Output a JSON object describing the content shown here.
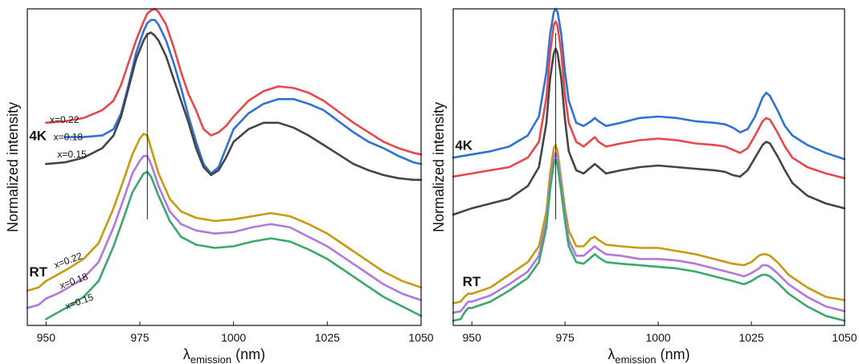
{
  "colors": {
    "red": "#e8474b",
    "blue": "#2f72d6",
    "gray": "#454545",
    "gold": "#c79a12",
    "purple": "#b278dc",
    "green": "#3aa96b"
  },
  "chart_data": [
    {
      "type": "line",
      "title": "",
      "xlabel": "λ",
      "xlabel_sub": "emission",
      "xlabel_unit": " (nm)",
      "ylabel": "Normalized intensity",
      "xlim": [
        945,
        1050
      ],
      "ylim": [
        0,
        1
      ],
      "yticks_shown": false,
      "x_ticks": [
        950,
        975,
        1000,
        1025,
        1050
      ],
      "x_tick_labels": [
        "950",
        "975",
        "1000",
        "1025",
        "1050"
      ],
      "vline_x": 977,
      "group_labels": [
        {
          "text": "4K",
          "x": 945.5,
          "y": 0.585
        },
        {
          "text": "RT",
          "x": 945.5,
          "y": 0.155
        }
      ],
      "annotations": [
        {
          "text": "x=0.22",
          "x": 951,
          "y": 0.64
        },
        {
          "text": "x=0.18",
          "x": 952,
          "y": 0.585
        },
        {
          "text": "x=0.15",
          "x": 953,
          "y": 0.53
        },
        {
          "text": "x=0.22",
          "x": 952.5,
          "y": 0.18,
          "rotate": -20
        },
        {
          "text": "x=0.18",
          "x": 954,
          "y": 0.115,
          "rotate": -20
        },
        {
          "text": "x=0.15",
          "x": 955.5,
          "y": 0.05,
          "rotate": -20
        }
      ],
      "series": [
        {
          "color_key": "red",
          "x": [
            950,
            955,
            960,
            965,
            968,
            970,
            972,
            974,
            976,
            977,
            978,
            979,
            980,
            982,
            984,
            986,
            988,
            990,
            992,
            994,
            996,
            998,
            1000,
            1004,
            1008,
            1012,
            1016,
            1020,
            1024,
            1028,
            1032,
            1036,
            1040,
            1044,
            1048,
            1050
          ],
          "y": [
            0.64,
            0.645,
            0.655,
            0.68,
            0.71,
            0.76,
            0.83,
            0.9,
            0.96,
            0.985,
            0.995,
            1.0,
            0.99,
            0.95,
            0.88,
            0.8,
            0.73,
            0.68,
            0.62,
            0.6,
            0.61,
            0.63,
            0.66,
            0.71,
            0.74,
            0.755,
            0.75,
            0.735,
            0.71,
            0.675,
            0.64,
            0.61,
            0.58,
            0.56,
            0.545,
            0.54
          ]
        },
        {
          "color_key": "blue",
          "x": [
            955,
            960,
            965,
            968,
            970,
            972,
            974,
            976,
            977,
            978,
            979,
            980,
            982,
            984,
            986,
            988,
            990,
            992,
            994,
            996,
            998,
            1000,
            1004,
            1008,
            1012,
            1016,
            1020,
            1024,
            1028,
            1032,
            1036,
            1040,
            1044,
            1048,
            1050
          ],
          "y": [
            0.595,
            0.595,
            0.6,
            0.62,
            0.67,
            0.76,
            0.86,
            0.93,
            0.955,
            0.965,
            0.965,
            0.95,
            0.9,
            0.83,
            0.75,
            0.66,
            0.58,
            0.51,
            0.48,
            0.5,
            0.56,
            0.62,
            0.67,
            0.7,
            0.715,
            0.715,
            0.7,
            0.68,
            0.645,
            0.61,
            0.58,
            0.56,
            0.535,
            0.515,
            0.51
          ]
        },
        {
          "color_key": "gray",
          "x": [
            950,
            955,
            960,
            965,
            968,
            970,
            972,
            974,
            976,
            977,
            978,
            979,
            980,
            982,
            984,
            986,
            988,
            990,
            992,
            994,
            996,
            998,
            1000,
            1004,
            1008,
            1012,
            1016,
            1020,
            1024,
            1028,
            1032,
            1036,
            1040,
            1044,
            1048,
            1050
          ],
          "y": [
            0.51,
            0.515,
            0.53,
            0.56,
            0.6,
            0.66,
            0.75,
            0.84,
            0.9,
            0.92,
            0.925,
            0.915,
            0.9,
            0.85,
            0.78,
            0.71,
            0.64,
            0.56,
            0.5,
            0.475,
            0.49,
            0.53,
            0.58,
            0.62,
            0.64,
            0.64,
            0.625,
            0.6,
            0.57,
            0.54,
            0.51,
            0.49,
            0.475,
            0.465,
            0.46,
            0.46
          ]
        },
        {
          "color_key": "gold",
          "x": [
            945,
            948,
            950,
            953,
            956,
            960,
            964,
            968,
            971,
            973,
            975,
            976,
            977,
            978,
            980,
            983,
            986,
            990,
            995,
            1000,
            1005,
            1010,
            1015,
            1020,
            1025,
            1030,
            1035,
            1040,
            1045,
            1050
          ],
          "y": [
            0.11,
            0.12,
            0.14,
            0.16,
            0.18,
            0.21,
            0.26,
            0.37,
            0.47,
            0.54,
            0.59,
            0.605,
            0.6,
            0.56,
            0.48,
            0.4,
            0.36,
            0.34,
            0.33,
            0.335,
            0.345,
            0.355,
            0.345,
            0.32,
            0.29,
            0.25,
            0.21,
            0.17,
            0.14,
            0.12
          ]
        },
        {
          "color_key": "purple",
          "x": [
            945,
            948,
            950,
            953,
            956,
            960,
            964,
            968,
            971,
            973,
            975,
            976,
            977,
            978,
            980,
            983,
            986,
            990,
            995,
            1000,
            1005,
            1010,
            1015,
            1020,
            1025,
            1030,
            1035,
            1040,
            1045,
            1050
          ],
          "y": [
            0.055,
            0.065,
            0.085,
            0.1,
            0.12,
            0.15,
            0.2,
            0.31,
            0.41,
            0.48,
            0.52,
            0.535,
            0.535,
            0.51,
            0.44,
            0.36,
            0.32,
            0.3,
            0.29,
            0.295,
            0.31,
            0.32,
            0.31,
            0.28,
            0.25,
            0.21,
            0.17,
            0.13,
            0.1,
            0.08
          ]
        },
        {
          "color_key": "green",
          "x": [
            950,
            953,
            956,
            960,
            964,
            968,
            971,
            973,
            975,
            976,
            977,
            978,
            980,
            983,
            986,
            990,
            995,
            1000,
            1005,
            1010,
            1015,
            1020,
            1025,
            1030,
            1035,
            1040,
            1045,
            1050
          ],
          "y": [
            0.02,
            0.04,
            0.06,
            0.09,
            0.14,
            0.25,
            0.35,
            0.42,
            0.46,
            0.48,
            0.485,
            0.47,
            0.41,
            0.33,
            0.28,
            0.255,
            0.245,
            0.25,
            0.265,
            0.275,
            0.265,
            0.24,
            0.21,
            0.17,
            0.13,
            0.09,
            0.06,
            0.03
          ]
        }
      ]
    },
    {
      "type": "line",
      "title": "",
      "xlabel": "λ",
      "xlabel_sub": "emission",
      "xlabel_unit": " (nm)",
      "ylabel": "Normalized intensity",
      "xlim": [
        945,
        1050
      ],
      "ylim": [
        0,
        1
      ],
      "yticks_shown": false,
      "x_ticks": [
        950,
        975,
        1000,
        1025,
        1050
      ],
      "x_tick_labels": [
        "950",
        "975",
        "1000",
        "1025",
        "1050"
      ],
      "vline_x": 972.5,
      "group_labels": [
        {
          "text": "4K",
          "x": 945.5,
          "y": 0.555
        },
        {
          "text": "RT",
          "x": 947.5,
          "y": 0.125
        }
      ],
      "annotations": [],
      "series": [
        {
          "color_key": "blue",
          "x": [
            945,
            950,
            955,
            960,
            965,
            968,
            970,
            971,
            972,
            972.5,
            973,
            974,
            975,
            976,
            978,
            980,
            982,
            983,
            984,
            986,
            990,
            995,
            1000,
            1005,
            1010,
            1015,
            1018,
            1020,
            1022,
            1024,
            1026,
            1028,
            1029,
            1030,
            1032,
            1034,
            1036,
            1040,
            1045,
            1050
          ],
          "y": [
            0.53,
            0.54,
            0.55,
            0.565,
            0.6,
            0.66,
            0.8,
            0.92,
            0.99,
            1.0,
            0.99,
            0.92,
            0.8,
            0.71,
            0.64,
            0.63,
            0.645,
            0.655,
            0.645,
            0.63,
            0.64,
            0.655,
            0.66,
            0.655,
            0.645,
            0.64,
            0.635,
            0.625,
            0.61,
            0.62,
            0.66,
            0.72,
            0.735,
            0.725,
            0.68,
            0.63,
            0.6,
            0.57,
            0.545,
            0.525
          ]
        },
        {
          "color_key": "red",
          "x": [
            945,
            950,
            955,
            960,
            965,
            968,
            970,
            971,
            972,
            972.5,
            973,
            974,
            975,
            976,
            978,
            980,
            982,
            983,
            984,
            986,
            990,
            995,
            1000,
            1005,
            1010,
            1015,
            1018,
            1020,
            1022,
            1024,
            1026,
            1028,
            1029,
            1030,
            1032,
            1034,
            1036,
            1040,
            1045,
            1050
          ],
          "y": [
            0.47,
            0.48,
            0.49,
            0.5,
            0.53,
            0.58,
            0.72,
            0.86,
            0.95,
            0.96,
            0.945,
            0.86,
            0.73,
            0.64,
            0.58,
            0.565,
            0.585,
            0.595,
            0.58,
            0.565,
            0.575,
            0.585,
            0.59,
            0.585,
            0.575,
            0.57,
            0.565,
            0.555,
            0.545,
            0.56,
            0.6,
            0.645,
            0.655,
            0.65,
            0.61,
            0.565,
            0.53,
            0.5,
            0.48,
            0.465
          ]
        },
        {
          "color_key": "gray",
          "x": [
            945,
            950,
            955,
            960,
            965,
            968,
            970,
            971,
            972,
            972.5,
            973,
            974,
            975,
            976,
            978,
            980,
            982,
            983,
            984,
            986,
            990,
            995,
            1000,
            1005,
            1010,
            1015,
            1018,
            1020,
            1022,
            1024,
            1026,
            1028,
            1029,
            1030,
            1032,
            1034,
            1036,
            1040,
            1045,
            1050
          ],
          "y": [
            0.35,
            0.37,
            0.385,
            0.4,
            0.44,
            0.5,
            0.64,
            0.78,
            0.86,
            0.875,
            0.86,
            0.78,
            0.65,
            0.55,
            0.49,
            0.48,
            0.5,
            0.51,
            0.5,
            0.48,
            0.49,
            0.5,
            0.505,
            0.5,
            0.495,
            0.49,
            0.485,
            0.475,
            0.47,
            0.49,
            0.53,
            0.57,
            0.58,
            0.575,
            0.535,
            0.49,
            0.45,
            0.41,
            0.385,
            0.37
          ]
        },
        {
          "color_key": "gold",
          "x": [
            945,
            947,
            948,
            949,
            950,
            955,
            960,
            965,
            968,
            970,
            971,
            972,
            972.5,
            973,
            974,
            975,
            976,
            978,
            980,
            982,
            983,
            984,
            986,
            990,
            995,
            1000,
            1005,
            1010,
            1015,
            1020,
            1023,
            1025,
            1027,
            1028,
            1029,
            1030,
            1032,
            1035,
            1040,
            1045,
            1050
          ],
          "y": [
            0.07,
            0.075,
            0.09,
            0.1,
            0.1,
            0.12,
            0.16,
            0.2,
            0.25,
            0.36,
            0.48,
            0.56,
            0.57,
            0.55,
            0.46,
            0.37,
            0.3,
            0.25,
            0.25,
            0.275,
            0.28,
            0.27,
            0.255,
            0.25,
            0.245,
            0.245,
            0.235,
            0.225,
            0.21,
            0.195,
            0.19,
            0.2,
            0.22,
            0.225,
            0.225,
            0.22,
            0.2,
            0.16,
            0.12,
            0.09,
            0.08
          ]
        },
        {
          "color_key": "purple",
          "x": [
            945,
            947,
            948,
            949,
            950,
            955,
            960,
            965,
            968,
            970,
            971,
            972,
            972.5,
            973,
            974,
            975,
            976,
            978,
            980,
            982,
            983,
            984,
            986,
            990,
            995,
            1000,
            1005,
            1010,
            1015,
            1020,
            1023,
            1025,
            1027,
            1028,
            1029,
            1030,
            1032,
            1035,
            1040,
            1045,
            1050
          ],
          "y": [
            0.04,
            0.045,
            0.06,
            0.075,
            0.075,
            0.095,
            0.13,
            0.17,
            0.22,
            0.33,
            0.45,
            0.53,
            0.545,
            0.53,
            0.44,
            0.35,
            0.27,
            0.22,
            0.22,
            0.24,
            0.25,
            0.24,
            0.225,
            0.22,
            0.21,
            0.21,
            0.205,
            0.195,
            0.18,
            0.165,
            0.155,
            0.165,
            0.18,
            0.19,
            0.19,
            0.185,
            0.165,
            0.13,
            0.09,
            0.06,
            0.045
          ]
        },
        {
          "color_key": "green",
          "x": [
            945,
            947,
            948,
            949,
            950,
            955,
            960,
            965,
            968,
            970,
            971,
            972,
            972.5,
            973,
            974,
            975,
            976,
            978,
            980,
            982,
            983,
            984,
            986,
            990,
            995,
            1000,
            1005,
            1010,
            1015,
            1020,
            1023,
            1025,
            1027,
            1028,
            1029,
            1030,
            1032,
            1035,
            1040,
            1045,
            1050
          ],
          "y": [
            0.015,
            0.02,
            0.04,
            0.055,
            0.055,
            0.075,
            0.11,
            0.15,
            0.2,
            0.31,
            0.43,
            0.51,
            0.525,
            0.505,
            0.42,
            0.33,
            0.25,
            0.2,
            0.195,
            0.215,
            0.225,
            0.215,
            0.2,
            0.195,
            0.19,
            0.185,
            0.18,
            0.17,
            0.155,
            0.14,
            0.13,
            0.14,
            0.155,
            0.16,
            0.16,
            0.155,
            0.135,
            0.1,
            0.06,
            0.03,
            0.015
          ]
        }
      ]
    }
  ]
}
